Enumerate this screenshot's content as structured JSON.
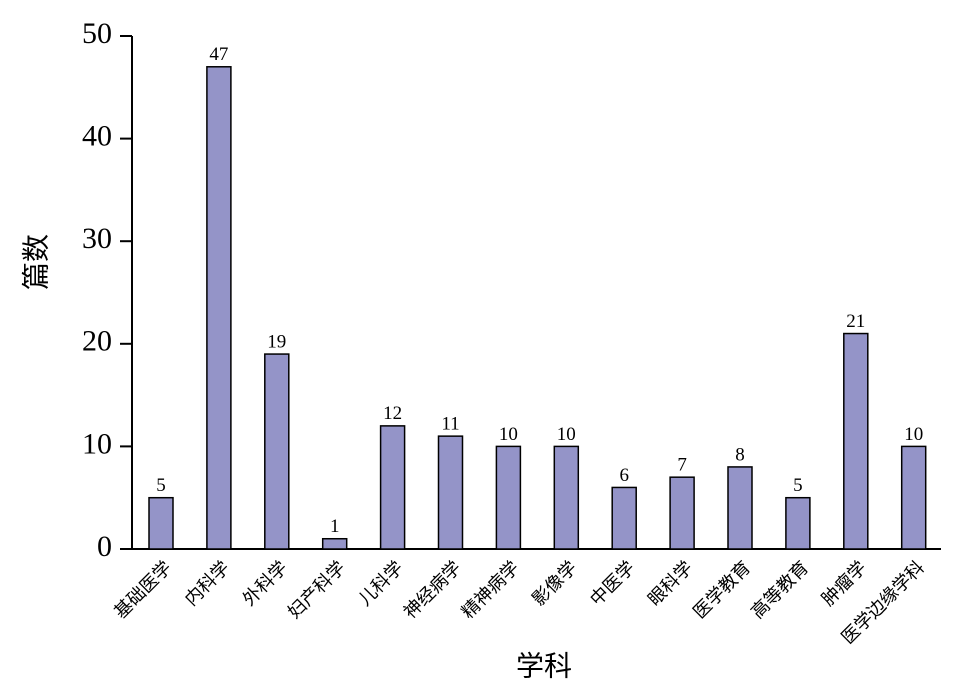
{
  "chart_data": {
    "type": "bar",
    "ylabel": "篇数",
    "xlabel": "学科",
    "categories": [
      "基础医学",
      "内科学",
      "外科学",
      "妇产科学",
      "儿科学",
      "神经病学",
      "精神病学",
      "影像学",
      "中医学",
      "眼科学",
      "医学教育",
      "高等教育",
      "肿瘤学",
      "医学边缘学科"
    ],
    "values": [
      5,
      47,
      19,
      1,
      12,
      11,
      10,
      10,
      6,
      7,
      8,
      5,
      21,
      10
    ],
    "color": "#9494c8",
    "ylim": [
      0,
      50
    ],
    "yticks": [
      0,
      10,
      20,
      30,
      40,
      50
    ],
    "grid": false
  }
}
